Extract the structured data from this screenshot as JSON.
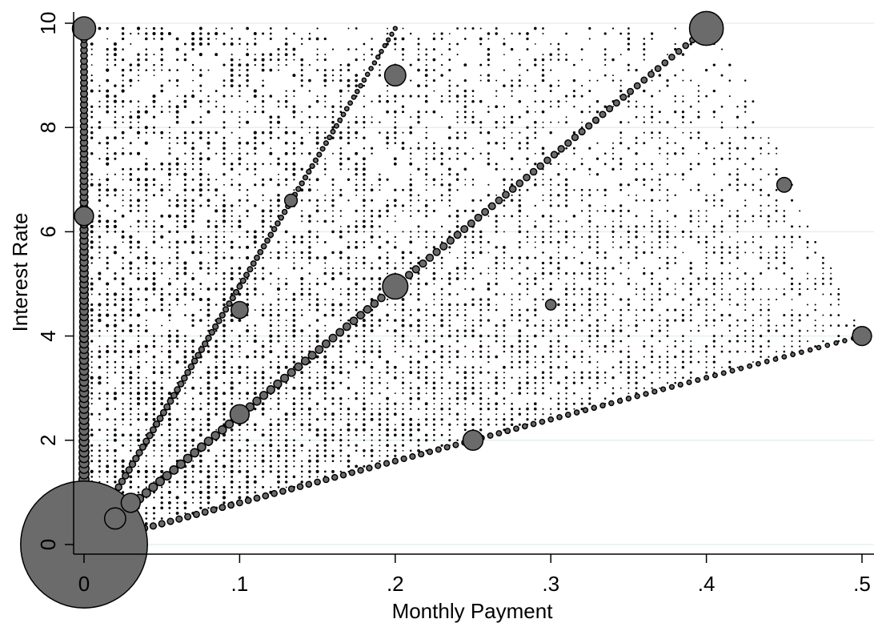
{
  "chart_data": {
    "type": "scatter",
    "title": "",
    "xlabel": "Monthly Payment",
    "ylabel": "Interest Rate",
    "xlim": [
      0,
      0.5
    ],
    "ylim": [
      0,
      10
    ],
    "x_ticks": [
      {
        "value": 0,
        "label": "0"
      },
      {
        "value": 0.1,
        "label": ".1"
      },
      {
        "value": 0.2,
        "label": ".2"
      },
      {
        "value": 0.3,
        "label": ".3"
      },
      {
        "value": 0.4,
        "label": ".4"
      },
      {
        "value": 0.5,
        "label": ".5"
      }
    ],
    "y_ticks": [
      {
        "value": 0,
        "label": "0"
      },
      {
        "value": 2,
        "label": "2"
      },
      {
        "value": 4,
        "label": "4"
      },
      {
        "value": 6,
        "label": "6"
      },
      {
        "value": 8,
        "label": "8"
      },
      {
        "value": 10,
        "label": "10"
      }
    ],
    "grid": "horizontal",
    "legend": "none",
    "marker_style": "weighted bubble (size proportional to frequency)",
    "colors": {
      "bubble_fill": "#6b6b6b",
      "small_marker": "#000000",
      "gridline": "#e6efef"
    },
    "background_cloud": {
      "x_range": [
        0,
        0.5
      ],
      "y_range": [
        0,
        10
      ],
      "description_shape_vertices": [
        [
          0,
          0
        ],
        [
          0,
          9.9
        ],
        [
          0.41,
          9.9
        ],
        [
          0.5,
          4.0
        ],
        [
          0,
          0
        ]
      ]
    },
    "ridge_lines": [
      {
        "x_start": 0,
        "y_start": 0,
        "x_end": 0.4,
        "y_end": 9.9
      },
      {
        "x_start": 0,
        "y_start": 0,
        "x_end": 0.2,
        "y_end": 9.9
      },
      {
        "x_start": 0,
        "y_start": 0,
        "x_end": 0.5,
        "y_end": 4.0
      },
      {
        "x_start": 0,
        "y_start": 0,
        "x_end": 0,
        "y_end": 9.9
      }
    ],
    "highlighted_points": [
      {
        "x": 0,
        "y": 0,
        "weight": 12
      },
      {
        "x": 0,
        "y": 9.9,
        "weight": 2.2
      },
      {
        "x": 0,
        "y": 6.3,
        "weight": 1.8
      },
      {
        "x": 0.2,
        "y": 9.0,
        "weight": 2.0
      },
      {
        "x": 0.4,
        "y": 9.9,
        "weight": 3.2
      },
      {
        "x": 0.2,
        "y": 4.95,
        "weight": 2.4
      },
      {
        "x": 0.5,
        "y": 4.0,
        "weight": 1.8
      },
      {
        "x": 0.25,
        "y": 2.0,
        "weight": 1.9
      },
      {
        "x": 0.1,
        "y": 4.5,
        "weight": 1.6
      },
      {
        "x": 0.1,
        "y": 2.5,
        "weight": 1.8
      },
      {
        "x": 0.45,
        "y": 6.9,
        "weight": 1.4
      },
      {
        "x": 0.133,
        "y": 6.6,
        "weight": 1.2
      },
      {
        "x": 0.3,
        "y": 4.6,
        "weight": 1.0
      },
      {
        "x": 0.02,
        "y": 0.5,
        "weight": 2.0
      },
      {
        "x": 0.03,
        "y": 0.8,
        "weight": 1.8
      }
    ]
  }
}
